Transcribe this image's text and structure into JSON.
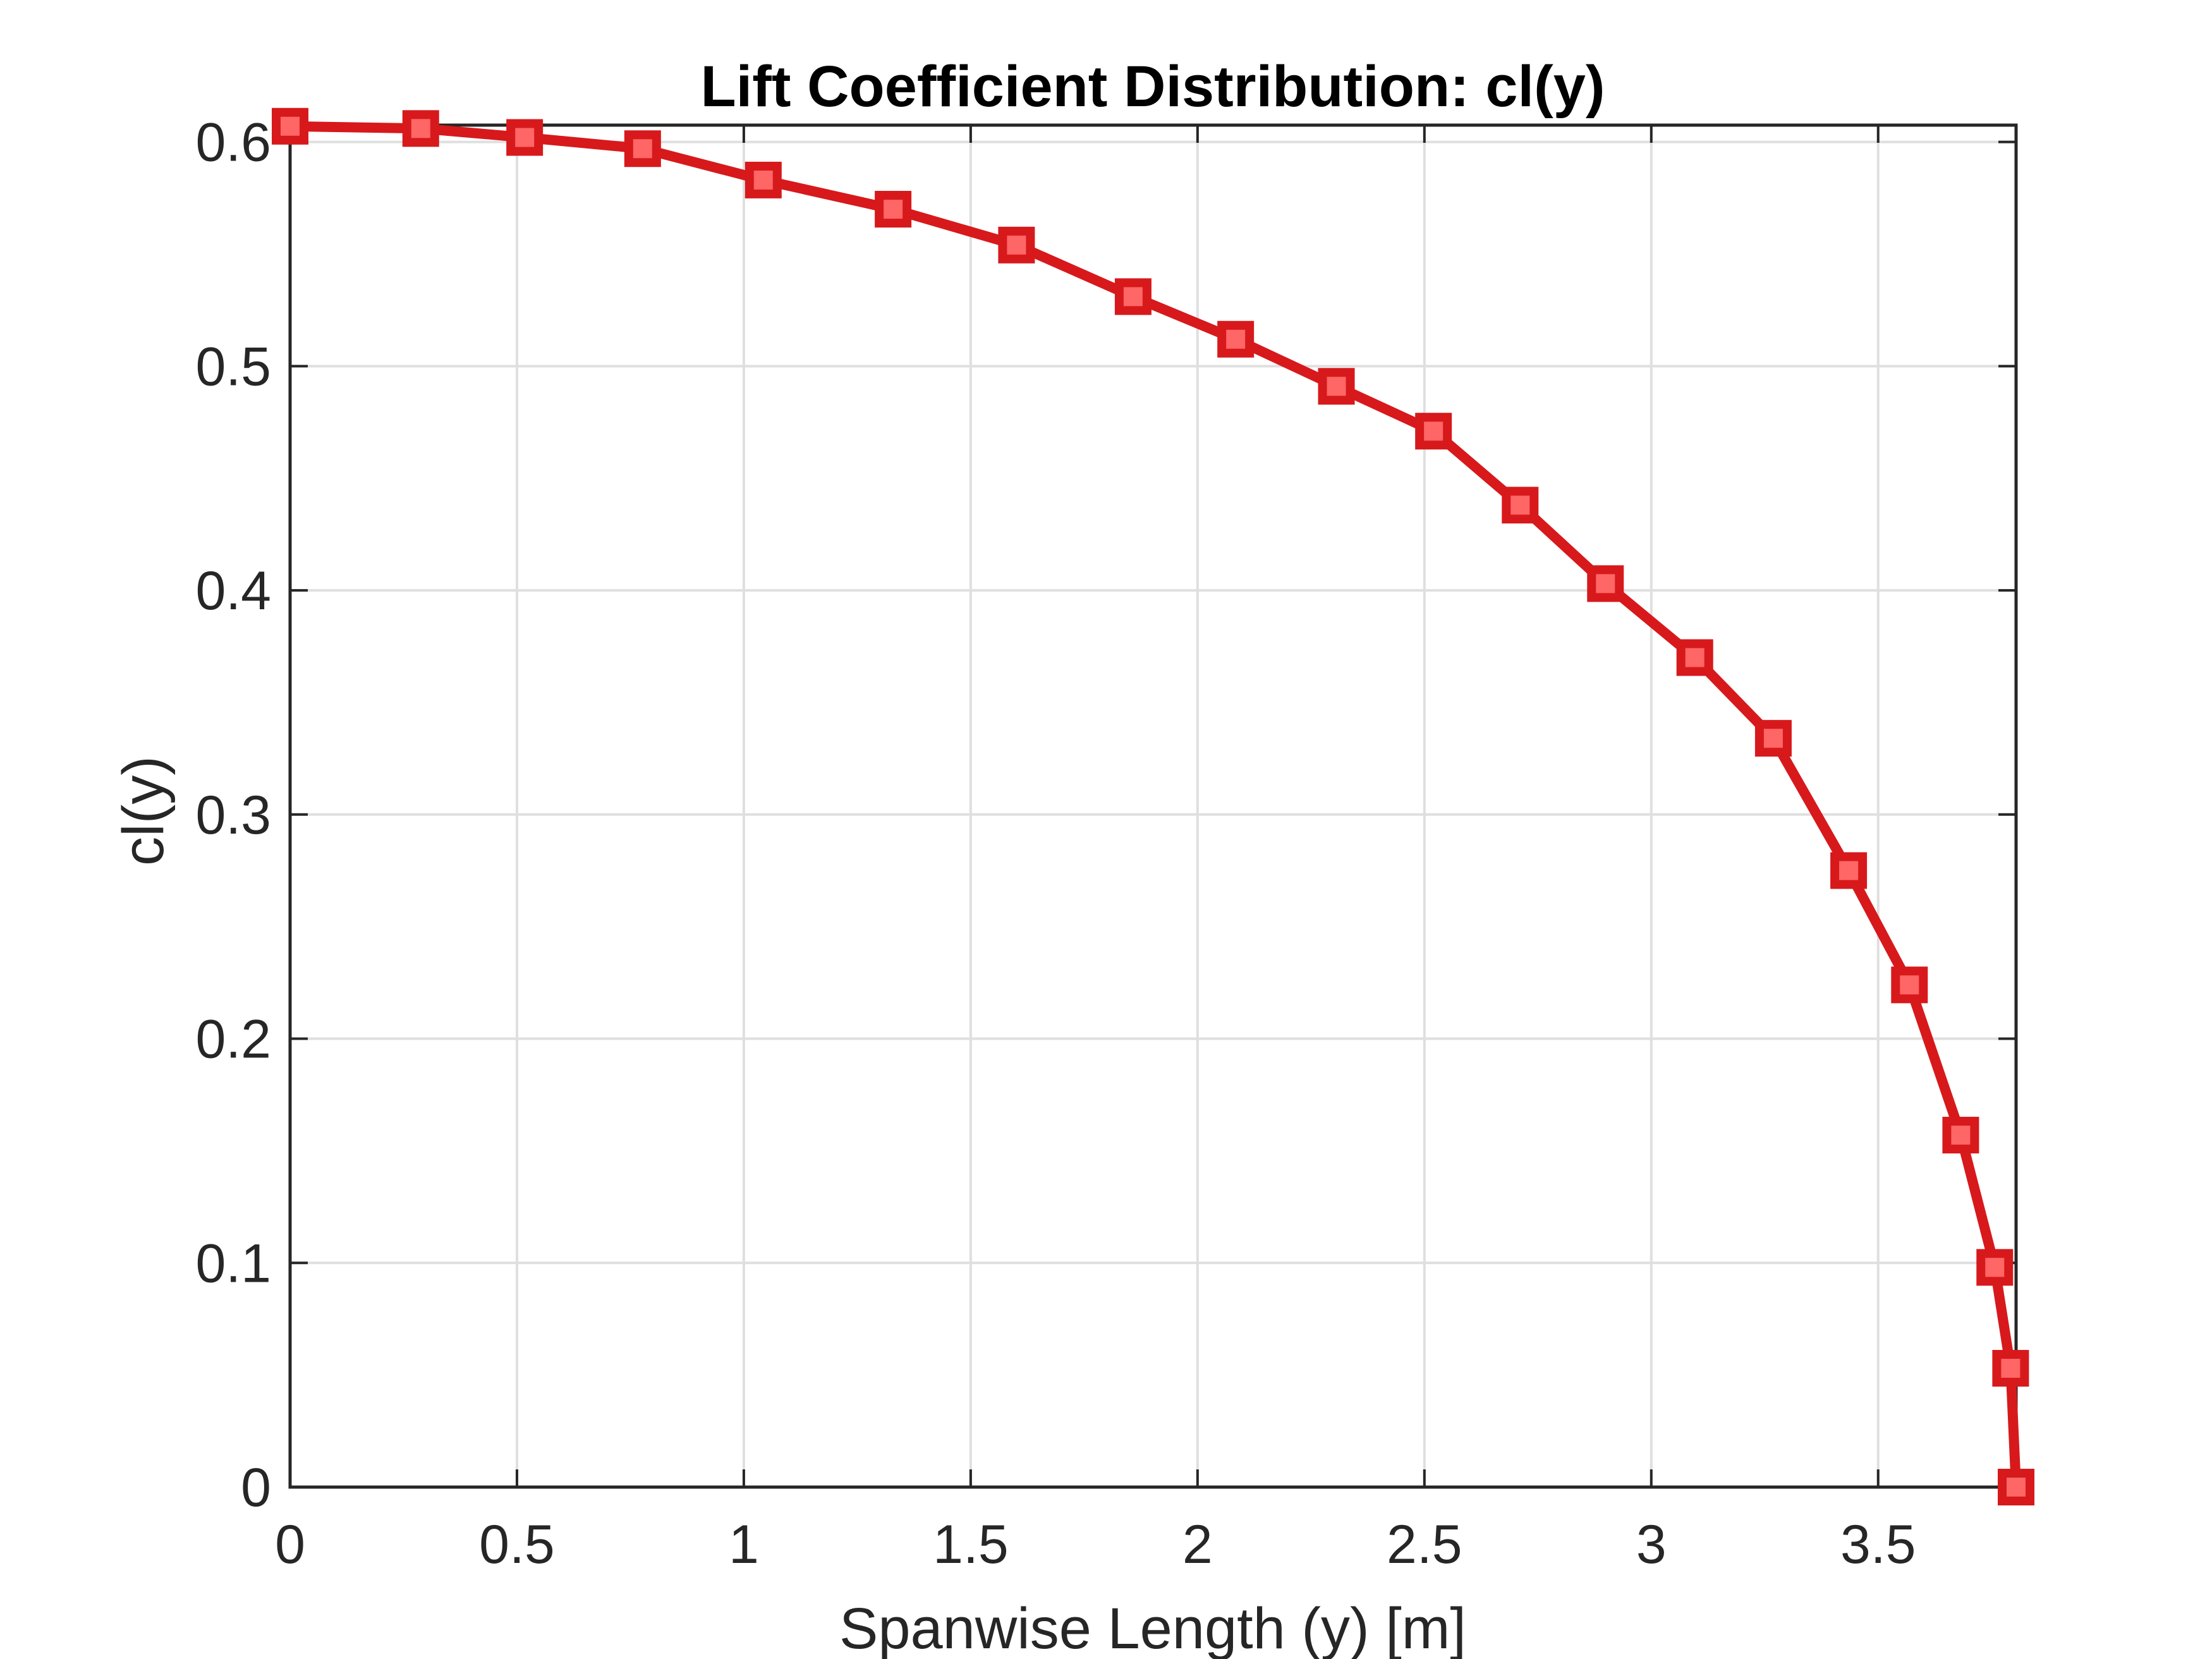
{
  "chart_data": {
    "type": "line",
    "title": "Lift Coefficient Distribution: cl(y)",
    "xlabel": "Spanwise Length (y) [m]",
    "ylabel": "cl(y)",
    "xlim": [
      0,
      3.804
    ],
    "ylim": [
      0,
      0.6075
    ],
    "xticks": [
      0,
      0.5,
      1,
      1.5,
      2,
      2.5,
      3,
      3.5
    ],
    "xtick_labels": [
      "0",
      "0.5",
      "1",
      "1.5",
      "2",
      "2.5",
      "3",
      "3.5"
    ],
    "yticks": [
      0,
      0.1,
      0.2,
      0.3,
      0.4,
      0.5,
      0.6
    ],
    "ytick_labels": [
      "0",
      "0.1",
      "0.2",
      "0.3",
      "0.4",
      "0.5",
      "0.6"
    ],
    "grid": true,
    "legend": null,
    "series": [
      {
        "name": "cl(y)",
        "color": "#D7191C",
        "marker": "square",
        "marker_face_color": "#FF6666",
        "x": [
          0,
          0.288,
          0.517,
          0.777,
          1.043,
          1.329,
          1.601,
          1.858,
          2.084,
          2.306,
          2.52,
          2.711,
          2.899,
          3.096,
          3.269,
          3.435,
          3.569,
          3.682,
          3.757,
          3.792,
          3.804
        ],
        "y": [
          0.607,
          0.606,
          0.602,
          0.597,
          0.583,
          0.57,
          0.554,
          0.531,
          0.512,
          0.491,
          0.471,
          0.438,
          0.403,
          0.37,
          0.334,
          0.275,
          0.224,
          0.157,
          0.098,
          0.053,
          0.0
        ]
      }
    ]
  },
  "colors": {
    "line": "#D7191C",
    "marker_face": "#FF6666",
    "axis": "#262626",
    "grid": "#DFDFDF",
    "background": "#FFFFFF"
  }
}
